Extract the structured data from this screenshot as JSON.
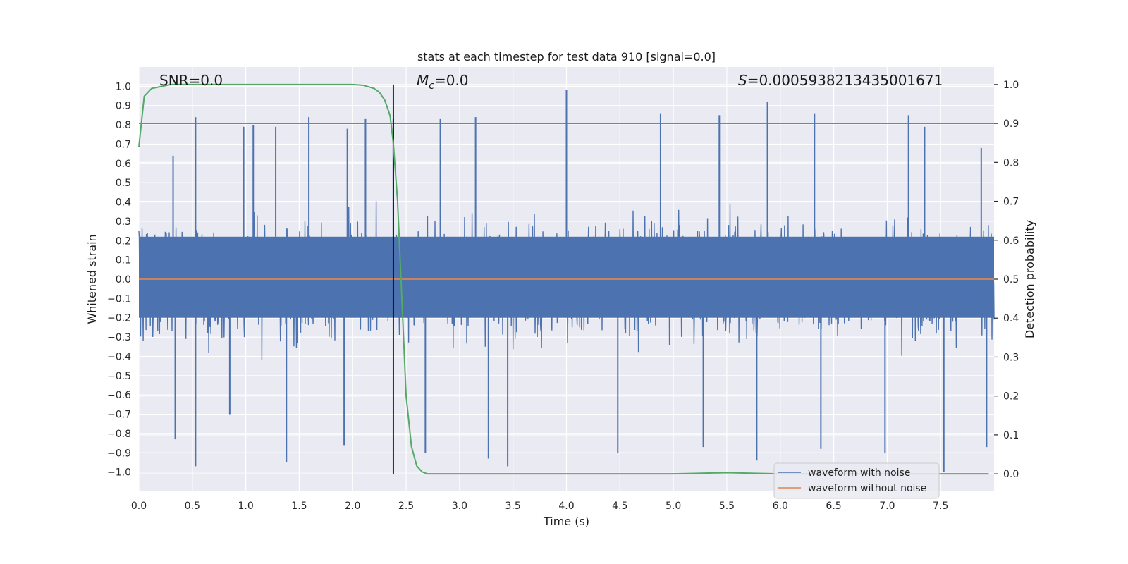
{
  "chart_data": {
    "type": "line",
    "title": "stats at each timestep for test data 910 [signal=0.0]",
    "xlabel": "Time (s)",
    "ylabel": "Whitened strain",
    "y2label": "Detection probability",
    "xlim": [
      0.0,
      8.0
    ],
    "ylim": [
      -1.1,
      1.1
    ],
    "y2lim": [
      -0.045,
      1.045
    ],
    "x_ticks": [
      0.0,
      0.5,
      1.0,
      1.5,
      2.0,
      2.5,
      3.0,
      3.5,
      4.0,
      4.5,
      5.0,
      5.5,
      6.0,
      6.5,
      7.0,
      7.5
    ],
    "x_tick_labels": [
      "0.0",
      "0.5",
      "1.0",
      "1.5",
      "2.0",
      "2.5",
      "3.0",
      "3.5",
      "4.0",
      "4.5",
      "5.0",
      "5.5",
      "6.0",
      "6.5",
      "7.0",
      "7.5"
    ],
    "y_ticks": [
      1.0,
      0.9,
      0.8,
      0.7,
      0.6,
      0.5,
      0.4,
      0.3,
      0.2,
      0.1,
      0.0,
      -0.1,
      -0.2,
      -0.3,
      -0.4,
      -0.5,
      -0.6,
      -0.7,
      -0.8,
      -0.9,
      -1.0
    ],
    "y_tick_labels": [
      "1.0",
      "0.9",
      "0.8",
      "0.7",
      "0.6",
      "0.5",
      "0.4",
      "0.3",
      "0.2",
      "0.1",
      "0.0",
      "−0.1",
      "−0.2",
      "−0.3",
      "−0.4",
      "−0.5",
      "−0.6",
      "−0.7",
      "−0.8",
      "−0.9",
      "−1.0"
    ],
    "y2_ticks": [
      1.0,
      0.9,
      0.8,
      0.7,
      0.6,
      0.5,
      0.4,
      0.3,
      0.2,
      0.1,
      0.0
    ],
    "y2_tick_labels": [
      "1.0",
      "0.9",
      "0.8",
      "0.7",
      "0.6",
      "0.5",
      "0.4",
      "0.3",
      "0.2",
      "0.1",
      "0.0"
    ],
    "annotations": {
      "snr": "SNR=0.0",
      "mc_symbol": "M",
      "mc_sub": "c",
      "mc_value": "=0.0",
      "s_symbol": "S",
      "s_value": "=0.0005938213435001671"
    },
    "vertical_marker_x": 2.38,
    "threshold_probability": 0.9,
    "noise_envelope": {
      "x": [
        0.0,
        8.0
      ],
      "typical_positive_peak": 0.5,
      "typical_negative_peak": -0.5,
      "max_positive_peak": 0.98,
      "min_negative_peak": -1.0
    },
    "noise_spikes": [
      {
        "x": 0.32,
        "y": 0.64
      },
      {
        "x": 0.53,
        "y": 0.84
      },
      {
        "x": 0.98,
        "y": 0.79
      },
      {
        "x": 1.07,
        "y": 0.8
      },
      {
        "x": 1.28,
        "y": 0.79
      },
      {
        "x": 1.59,
        "y": 0.84
      },
      {
        "x": 1.95,
        "y": 0.78
      },
      {
        "x": 2.12,
        "y": 0.83
      },
      {
        "x": 2.38,
        "y": 0.83
      },
      {
        "x": 2.82,
        "y": 0.83
      },
      {
        "x": 3.15,
        "y": 0.84
      },
      {
        "x": 4.0,
        "y": 0.98
      },
      {
        "x": 4.88,
        "y": 0.86
      },
      {
        "x": 5.43,
        "y": 0.85
      },
      {
        "x": 5.88,
        "y": 0.92
      },
      {
        "x": 6.32,
        "y": 0.86
      },
      {
        "x": 7.2,
        "y": 0.85
      },
      {
        "x": 7.35,
        "y": 0.79
      },
      {
        "x": 7.88,
        "y": 0.68
      },
      {
        "x": 0.34,
        "y": -0.83
      },
      {
        "x": 0.53,
        "y": -0.97
      },
      {
        "x": 0.85,
        "y": -0.7
      },
      {
        "x": 1.38,
        "y": -0.95
      },
      {
        "x": 1.92,
        "y": -0.86
      },
      {
        "x": 2.68,
        "y": -0.9
      },
      {
        "x": 3.27,
        "y": -0.93
      },
      {
        "x": 3.45,
        "y": -0.97
      },
      {
        "x": 4.48,
        "y": -0.9
      },
      {
        "x": 5.28,
        "y": -0.87
      },
      {
        "x": 5.78,
        "y": -0.94
      },
      {
        "x": 6.38,
        "y": -0.88
      },
      {
        "x": 6.98,
        "y": -0.9
      },
      {
        "x": 7.53,
        "y": -1.0
      },
      {
        "x": 7.93,
        "y": -0.87
      }
    ],
    "series": [
      {
        "name": "waveform with noise",
        "color": "#4c72b0",
        "axis": "left",
        "kind": "noise"
      },
      {
        "name": "waveform without noise",
        "color": "#dd8452",
        "axis": "left",
        "x": [
          0.0,
          8.0
        ],
        "y": [
          0.0,
          0.0
        ]
      },
      {
        "name": "detection probability",
        "color": "#55a868",
        "axis": "right",
        "x": [
          0.0,
          0.05,
          0.12,
          0.3,
          0.6,
          1.0,
          1.5,
          2.0,
          2.1,
          2.2,
          2.25,
          2.3,
          2.35,
          2.38,
          2.42,
          2.46,
          2.5,
          2.55,
          2.6,
          2.65,
          2.7,
          3.0,
          4.0,
          5.0,
          5.5,
          6.0,
          7.0,
          7.95
        ],
        "y": [
          0.84,
          0.97,
          0.99,
          1.0,
          1.0,
          1.0,
          1.0,
          1.0,
          0.998,
          0.99,
          0.98,
          0.96,
          0.92,
          0.85,
          0.7,
          0.45,
          0.2,
          0.07,
          0.02,
          0.005,
          0.0,
          0.0,
          0.0,
          0.0,
          0.003,
          0.0,
          0.0,
          0.0
        ]
      },
      {
        "name": "threshold",
        "color": "#c44e52",
        "axis": "right",
        "x": [
          0.0,
          8.0
        ],
        "y": [
          0.9,
          0.9
        ]
      }
    ],
    "legend": {
      "placement": "lower-right",
      "entries": [
        {
          "label": "waveform with noise",
          "color": "#4c72b0"
        },
        {
          "label": "waveform without noise",
          "color": "#dd8452"
        }
      ]
    },
    "colors": {
      "plot_bg": "#eaeaf2",
      "grid": "#ffffff",
      "marker": "#000000"
    }
  }
}
